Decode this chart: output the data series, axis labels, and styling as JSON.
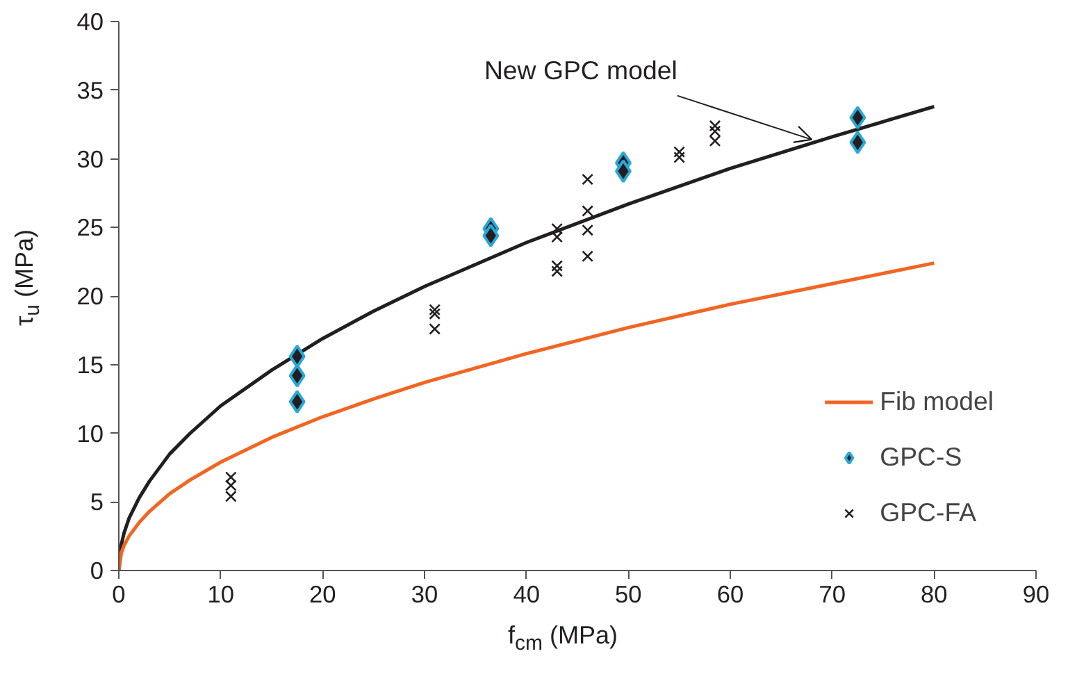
{
  "chart_data": {
    "type": "line",
    "xlabel": "f$_{cm}$ (MPa)",
    "ylabel": "τ$_{u}$ (MPa)",
    "xlim": [
      0,
      90
    ],
    "ylim": [
      0,
      40
    ],
    "xticks": [
      0,
      10,
      20,
      30,
      40,
      50,
      60,
      70,
      80,
      90
    ],
    "yticks": [
      0,
      5,
      10,
      15,
      20,
      25,
      30,
      35,
      40
    ],
    "grid": false,
    "legend": "bottom right",
    "annotations": [
      {
        "text": "New GPC model",
        "x": 68,
        "y": 31.4
      }
    ],
    "series": [
      {
        "color": "#231f20",
        "x": [
          0,
          0.25,
          0.5,
          1,
          2,
          3,
          5,
          7,
          10,
          15,
          20,
          25,
          30,
          40,
          50,
          60,
          70,
          80
        ],
        "values": [
          0,
          1.9,
          2.7,
          3.8,
          5.3,
          6.5,
          8.5,
          10.0,
          12.0,
          14.6,
          16.9,
          18.9,
          20.7,
          23.9,
          26.7,
          29.3,
          31.6,
          33.8
        ]
      },
      {
        "name": "Fib model",
        "color": "#f26522",
        "x": [
          0,
          0.25,
          0.5,
          1,
          2,
          3,
          5,
          7,
          10,
          15,
          20,
          25,
          30,
          40,
          50,
          60,
          70,
          80
        ],
        "values": [
          0,
          1.3,
          1.8,
          2.5,
          3.5,
          4.3,
          5.6,
          6.6,
          7.9,
          9.7,
          11.2,
          12.5,
          13.7,
          15.8,
          17.7,
          19.4,
          20.9,
          22.4
        ]
      },
      {
        "type": "scatter",
        "name": "GPC-S",
        "color": "#231f20",
        "marker": "diamond",
        "x": [
          17.5,
          17.5,
          17.5,
          36.5,
          36.5,
          49.5,
          49.5,
          72.5,
          72.5
        ],
        "values": [
          15.6,
          14.2,
          12.3,
          24.9,
          24.4,
          29.7,
          29.1,
          33.0,
          31.2
        ]
      },
      {
        "type": "scatter",
        "name": "GPC-FA",
        "color": "#231f20",
        "marker": "cross",
        "x": [
          11,
          11,
          11,
          31,
          31,
          31,
          43,
          43,
          43,
          43,
          46,
          46,
          46,
          46,
          55,
          55,
          58.5,
          58.5,
          58.5
        ],
        "values": [
          6.8,
          6.2,
          5.4,
          19.0,
          18.7,
          17.6,
          24.9,
          24.3,
          22.2,
          21.8,
          28.5,
          26.2,
          24.8,
          22.9,
          30.5,
          30.1,
          32.4,
          32.0,
          31.3
        ]
      }
    ]
  }
}
